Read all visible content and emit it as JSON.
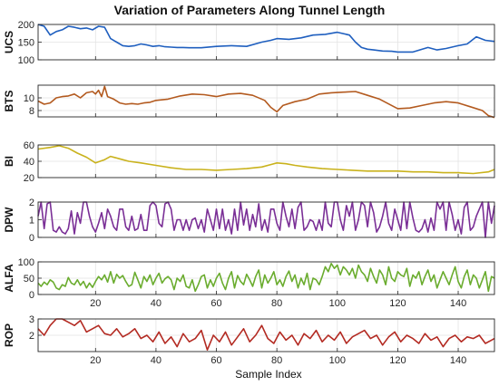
{
  "chart_data": {
    "type": "line",
    "title": "Variation of Parameters Along Tunnel Length",
    "xlabel": "Sample Index",
    "xlim": [
      1,
      152
    ],
    "xticks": [
      20,
      40,
      60,
      80,
      100,
      120,
      140
    ],
    "grid": true,
    "series": [
      {
        "name": "UCS",
        "color": "#1f5fbf",
        "ylim": [
          100,
          200
        ],
        "yticks": [
          100,
          150,
          200
        ],
        "x": [
          1,
          3,
          5,
          7,
          9,
          11,
          13,
          15,
          17,
          19,
          21,
          23,
          25,
          27,
          29,
          31,
          33,
          35,
          37,
          39,
          41,
          43,
          45,
          47,
          49,
          51,
          55,
          60,
          65,
          70,
          75,
          78,
          80,
          84,
          88,
          92,
          96,
          100,
          104,
          106,
          108,
          110,
          112,
          115,
          118,
          120,
          125,
          130,
          133,
          136,
          140,
          143,
          146,
          149,
          152
        ],
        "y": [
          200,
          195,
          170,
          180,
          185,
          195,
          192,
          188,
          190,
          185,
          195,
          192,
          160,
          150,
          140,
          138,
          140,
          145,
          142,
          138,
          140,
          137,
          136,
          135,
          135,
          134,
          134,
          138,
          140,
          138,
          150,
          155,
          160,
          158,
          162,
          170,
          172,
          178,
          170,
          150,
          135,
          130,
          128,
          125,
          124,
          122,
          122,
          135,
          128,
          132,
          140,
          145,
          165,
          155,
          152
        ]
      },
      {
        "name": "BTS",
        "color": "#b35a1f",
        "ylim": [
          7,
          12
        ],
        "yticks": [
          8,
          10
        ],
        "x": [
          1,
          3,
          5,
          7,
          9,
          11,
          13,
          15,
          17,
          19,
          20,
          21,
          22,
          23,
          24,
          26,
          28,
          30,
          32,
          34,
          36,
          38,
          40,
          44,
          48,
          52,
          56,
          60,
          64,
          68,
          72,
          76,
          78,
          80,
          82,
          86,
          90,
          94,
          98,
          102,
          106,
          110,
          114,
          118,
          120,
          124,
          128,
          132,
          136,
          140,
          144,
          148,
          150,
          152
        ],
        "y": [
          9.5,
          9.0,
          9.2,
          10.0,
          10.2,
          10.3,
          10.6,
          10.0,
          10.8,
          11.0,
          10.6,
          11.2,
          10.2,
          11.8,
          10.2,
          9.8,
          9.2,
          9.0,
          9.1,
          9.0,
          9.2,
          9.3,
          9.6,
          9.8,
          10.3,
          10.6,
          10.5,
          10.2,
          10.6,
          10.7,
          10.4,
          9.6,
          8.5,
          7.8,
          8.8,
          9.4,
          9.8,
          10.6,
          10.8,
          10.9,
          11.0,
          10.4,
          9.8,
          8.8,
          8.3,
          8.4,
          8.8,
          9.2,
          9.4,
          9.2,
          8.6,
          8.0,
          7.2,
          6.9
        ]
      },
      {
        "name": "BI",
        "color": "#c9b21c",
        "ylim": [
          20,
          60
        ],
        "yticks": [
          20,
          40,
          60
        ],
        "x": [
          1,
          5,
          8,
          11,
          14,
          17,
          20,
          23,
          25,
          28,
          31,
          35,
          40,
          45,
          50,
          55,
          60,
          65,
          70,
          75,
          78,
          80,
          83,
          86,
          90,
          95,
          100,
          105,
          110,
          115,
          120,
          125,
          130,
          135,
          140,
          145,
          150,
          152
        ],
        "y": [
          55,
          57,
          59,
          56,
          50,
          45,
          38,
          42,
          46,
          43,
          40,
          38,
          35,
          32,
          30,
          30,
          29,
          30,
          31,
          33,
          36,
          38,
          37,
          35,
          33,
          31,
          30,
          29,
          28,
          28,
          28,
          27,
          27,
          26,
          26,
          25,
          27,
          30
        ]
      },
      {
        "name": "DPW",
        "color": "#7a2f96",
        "ylim": [
          0,
          2
        ],
        "yticks": [
          0,
          1,
          2
        ],
        "x": [
          1,
          2,
          3,
          4,
          5,
          6,
          7,
          8,
          9,
          10,
          11,
          12,
          13,
          14,
          15,
          16,
          17,
          18,
          19,
          20,
          21,
          22,
          23,
          24,
          25,
          26,
          27,
          28,
          29,
          30,
          31,
          32,
          33,
          34,
          35,
          36,
          37,
          38,
          39,
          40,
          41,
          42,
          43,
          44,
          45,
          46,
          47,
          48,
          49,
          50,
          51,
          52,
          53,
          54,
          55,
          56,
          57,
          58,
          59,
          60,
          61,
          62,
          63,
          64,
          65,
          66,
          67,
          68,
          69,
          70,
          71,
          72,
          73,
          74,
          75,
          76,
          77,
          78,
          79,
          80,
          81,
          82,
          83,
          84,
          85,
          86,
          87,
          88,
          89,
          90,
          91,
          92,
          93,
          94,
          95,
          96,
          97,
          98,
          99,
          100,
          101,
          102,
          103,
          104,
          105,
          106,
          107,
          108,
          109,
          110,
          111,
          112,
          113,
          114,
          115,
          116,
          117,
          118,
          119,
          120,
          121,
          122,
          123,
          124,
          125,
          126,
          127,
          128,
          129,
          130,
          131,
          132,
          133,
          134,
          135,
          136,
          137,
          138,
          139,
          140,
          141,
          142,
          143,
          144,
          145,
          146,
          147,
          148,
          149,
          150,
          151,
          152
        ],
        "y": [
          1.2,
          2.0,
          0.5,
          1.9,
          2.0,
          0.4,
          0.3,
          0.6,
          0.3,
          0.2,
          0.5,
          1.5,
          0.2,
          1.4,
          0.8,
          2.0,
          2.0,
          1.2,
          0.6,
          0.3,
          0.8,
          1.4,
          0.5,
          1.6,
          1.2,
          0.6,
          0.4,
          1.6,
          1.6,
          0.6,
          0.4,
          1.2,
          0.4,
          0.5,
          1.3,
          0.4,
          0.4,
          1.8,
          2.0,
          1.8,
          0.8,
          0.6,
          1.9,
          2.0,
          1.6,
          0.4,
          1.0,
          1.0,
          0.4,
          1.0,
          0.4,
          1.0,
          1.1,
          0.5,
          1.0,
          0.3,
          1.6,
          1.0,
          0.4,
          1.6,
          0.5,
          1.6,
          0.4,
          1.0,
          0.2,
          1.6,
          0.4,
          2.0,
          0.7,
          1.6,
          0.4,
          1.3,
          0.6,
          1.9,
          0.4,
          1.0,
          0.3,
          1.6,
          1.6,
          0.8,
          0.4,
          2.0,
          1.2,
          0.6,
          1.6,
          0.5,
          1.7,
          2.0,
          0.4,
          0.6,
          1.0,
          0.9,
          0.4,
          1.0,
          0.4,
          2.0,
          0.8,
          0.6,
          2.0,
          2.0,
          1.0,
          0.4,
          1.8,
          1.2,
          2.0,
          0.4,
          1.0,
          2.0,
          1.8,
          0.6,
          2.0,
          1.4,
          0.3,
          0.6,
          1.2,
          2.0,
          0.8,
          0.4,
          1.6,
          1.0,
          0.4,
          2.0,
          0.5,
          2.0,
          1.1,
          0.4,
          0.3,
          0.5,
          1.0,
          0.3,
          1.1,
          0.4,
          2.0,
          1.6,
          2.0,
          0.4,
          2.0,
          1.3,
          0.4,
          1.0,
          0.2,
          1.7,
          2.0,
          0.4,
          0.6,
          1.2,
          1.6,
          2.0,
          0.0,
          2.0,
          0.8,
          1.8
        ]
      },
      {
        "name": "ALFA",
        "color": "#6aac2e",
        "ylim": [
          0,
          100
        ],
        "yticks": [
          0,
          50,
          100
        ],
        "x": [
          1,
          2,
          3,
          4,
          5,
          6,
          7,
          8,
          9,
          10,
          11,
          12,
          13,
          14,
          15,
          16,
          17,
          18,
          19,
          20,
          21,
          22,
          23,
          24,
          25,
          26,
          27,
          28,
          29,
          30,
          31,
          32,
          33,
          34,
          35,
          36,
          37,
          38,
          39,
          40,
          41,
          42,
          43,
          44,
          45,
          46,
          47,
          48,
          49,
          50,
          51,
          52,
          53,
          54,
          55,
          56,
          57,
          58,
          59,
          60,
          61,
          62,
          63,
          64,
          65,
          66,
          67,
          68,
          69,
          70,
          71,
          72,
          73,
          74,
          75,
          76,
          77,
          78,
          79,
          80,
          81,
          82,
          83,
          84,
          85,
          86,
          87,
          88,
          89,
          90,
          91,
          92,
          93,
          94,
          95,
          96,
          97,
          98,
          99,
          100,
          101,
          102,
          103,
          104,
          105,
          106,
          107,
          108,
          109,
          110,
          111,
          112,
          113,
          114,
          115,
          116,
          117,
          118,
          119,
          120,
          121,
          122,
          123,
          124,
          125,
          126,
          127,
          128,
          129,
          130,
          131,
          132,
          133,
          134,
          135,
          136,
          137,
          138,
          139,
          140,
          141,
          142,
          143,
          144,
          145,
          146,
          147,
          148,
          149,
          150,
          151,
          152
        ],
        "y": [
          35,
          25,
          38,
          30,
          45,
          38,
          20,
          15,
          30,
          25,
          52,
          35,
          30,
          45,
          28,
          40,
          20,
          35,
          22,
          40,
          55,
          45,
          60,
          38,
          70,
          35,
          62,
          50,
          58,
          40,
          25,
          30,
          68,
          45,
          20,
          55,
          40,
          60,
          30,
          50,
          65,
          35,
          48,
          55,
          45,
          15,
          50,
          40,
          60,
          25,
          20,
          45,
          10,
          30,
          55,
          60,
          20,
          45,
          25,
          50,
          65,
          35,
          15,
          50,
          70,
          20,
          58,
          40,
          30,
          62,
          45,
          25,
          55,
          75,
          20,
          60,
          35,
          50,
          70,
          30,
          45,
          25,
          55,
          72,
          40,
          60,
          20,
          50,
          30,
          65,
          15,
          50,
          45,
          30,
          55,
          85,
          70,
          95,
          80,
          90,
          60,
          85,
          75,
          60,
          80,
          50,
          90,
          70,
          60,
          40,
          80,
          55,
          35,
          75,
          60,
          30,
          85,
          50,
          40,
          70,
          60,
          55,
          80,
          25,
          60,
          50,
          70,
          30,
          55,
          75,
          40,
          60,
          20,
          45,
          70,
          50,
          30,
          60,
          85,
          40,
          20,
          55,
          75,
          30,
          60,
          50,
          20,
          45,
          70,
          10,
          55,
          50
        ]
      },
      {
        "name": "ROP",
        "color": "#b32a22",
        "ylim": [
          1,
          3
        ],
        "yticks": [
          2,
          3
        ],
        "x": [
          1,
          3,
          5,
          7,
          9,
          11,
          13,
          15,
          17,
          19,
          21,
          23,
          25,
          27,
          29,
          31,
          33,
          35,
          37,
          39,
          41,
          43,
          45,
          47,
          49,
          51,
          53,
          55,
          57,
          59,
          61,
          63,
          65,
          67,
          69,
          71,
          73,
          75,
          77,
          79,
          81,
          83,
          85,
          87,
          89,
          91,
          93,
          95,
          97,
          99,
          101,
          103,
          105,
          107,
          109,
          111,
          113,
          115,
          117,
          119,
          121,
          123,
          125,
          127,
          129,
          131,
          133,
          135,
          137,
          139,
          141,
          143,
          145,
          147,
          149,
          151,
          152
        ],
        "y": [
          2.4,
          2.0,
          2.6,
          3.0,
          3.0,
          2.8,
          2.6,
          2.9,
          2.2,
          2.4,
          2.6,
          2.1,
          2.0,
          2.4,
          1.9,
          2.1,
          2.4,
          1.8,
          2.0,
          1.6,
          2.2,
          1.5,
          1.9,
          1.3,
          2.1,
          1.6,
          1.8,
          2.3,
          1.1,
          2.0,
          1.6,
          2.2,
          1.4,
          1.9,
          2.4,
          1.6,
          2.0,
          2.6,
          1.8,
          1.5,
          2.2,
          1.7,
          2.0,
          1.4,
          2.1,
          1.8,
          2.3,
          1.6,
          2.0,
          1.7,
          2.2,
          1.5,
          1.9,
          2.1,
          2.3,
          1.8,
          2.0,
          1.4,
          1.9,
          2.2,
          1.6,
          2.0,
          1.8,
          1.5,
          2.1,
          1.7,
          1.9,
          1.3,
          1.8,
          2.0,
          1.6,
          1.9,
          1.8,
          2.0,
          1.5,
          1.7,
          1.8
        ]
      }
    ]
  }
}
